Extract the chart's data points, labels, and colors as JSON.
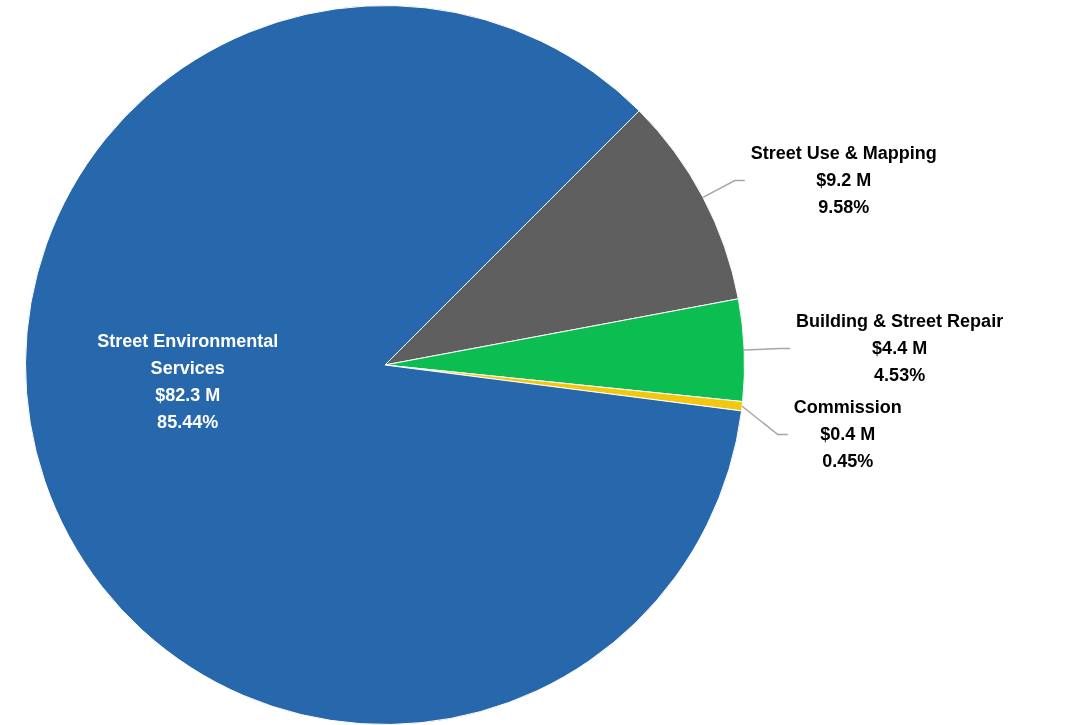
{
  "chart_data": {
    "type": "pie",
    "categories": [
      "Street Use & Mapping",
      "Building & Street Repair",
      "Commission",
      "Street Environmental Services"
    ],
    "values": [
      9.2,
      4.4,
      0.4,
      82.3
    ],
    "value_labels": [
      "$9.2 M\n9.58%",
      "$4.4 M\n4.53%",
      "$0.4 M\n0.45%",
      "$82.3 M\n85.44%"
    ],
    "colors": [
      "#5f5f5f",
      "#0cbd52",
      "#f2c80f",
      "#2767ab"
    ]
  }
}
